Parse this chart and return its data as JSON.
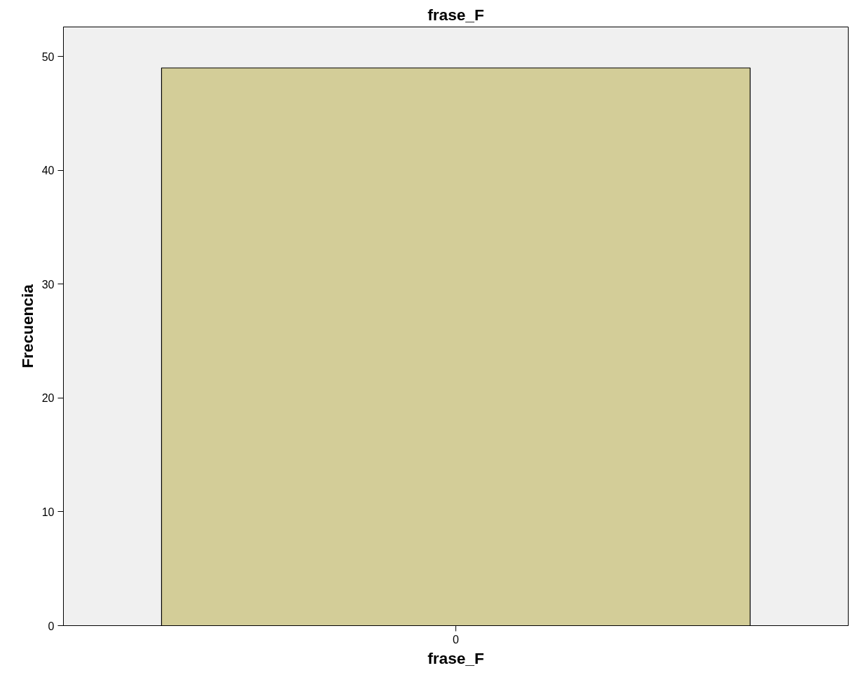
{
  "chart_data": {
    "type": "bar",
    "title": "frase_F",
    "xlabel": "frase_F",
    "ylabel": "Frecuencia",
    "categories": [
      "0"
    ],
    "values": [
      49
    ],
    "color": "#d3cd98",
    "ylim": [
      0,
      52.6
    ],
    "yticks": [
      0,
      10,
      20,
      30,
      40,
      50
    ],
    "grid": false
  }
}
